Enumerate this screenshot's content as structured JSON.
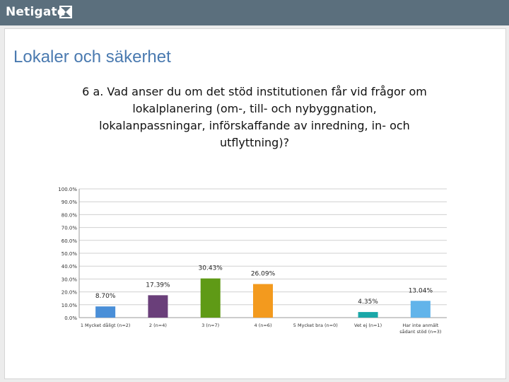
{
  "header": {
    "logo_text": "Netigate",
    "bar_color": "#5b6f7d"
  },
  "page": {
    "section_title": "Lokaler och säkerhet"
  },
  "chart_data": {
    "type": "bar",
    "title": "6 a. Vad anser du om det stöd institutionen får vid frågor om lokalplanering (om-, till- och nybyggnation, lokalanpassningar, införskaffande av inredning, in- och utflyttning)?",
    "categories": [
      [
        "1 Mycket dåligt (n=2)"
      ],
      [
        "2 (n=4)"
      ],
      [
        "3 (n=7)"
      ],
      [
        "4 (n=6)"
      ],
      [
        "5 Mycket bra (n=0)"
      ],
      [
        "Vet ej (n=1)"
      ],
      [
        "Har inte anmält",
        "sådant stöd (n=3)"
      ]
    ],
    "values": [
      8.7,
      17.39,
      30.43,
      26.09,
      0,
      4.35,
      13.04
    ],
    "value_labels": [
      "8.70%",
      "17.39%",
      "30.43%",
      "26.09%",
      "",
      "4.35%",
      "13.04%"
    ],
    "colors": [
      "#4a8fd8",
      "#6a3f7a",
      "#5f9a16",
      "#f39a1e",
      "#888888",
      "#1aa7a8",
      "#62b4ea"
    ],
    "ylim": [
      0,
      100
    ],
    "yticks": [
      "0.0%",
      "10.0%",
      "20.0%",
      "30.0%",
      "40.0%",
      "50.0%",
      "60.0%",
      "70.0%",
      "80.0%",
      "90.0%",
      "100.0%"
    ],
    "grid": true
  }
}
